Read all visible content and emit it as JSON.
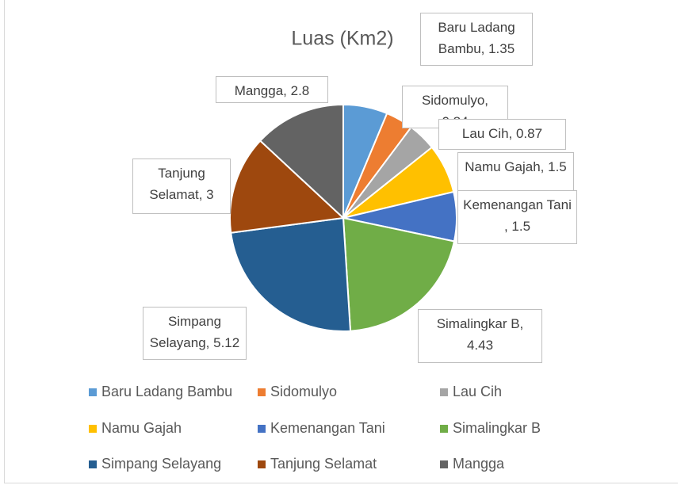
{
  "chart_data": {
    "type": "pie",
    "title": "Luas (Km2)",
    "categories": [
      "Baru Ladang Bambu",
      "Sidomulyo",
      "Lau Cih",
      "Namu Gajah",
      "Kemenangan Tani",
      "Simalingkar B",
      "Simpang Selayang",
      "Tanjung Selamat",
      "Mangga"
    ],
    "values": [
      1.35,
      0.84,
      0.87,
      1.5,
      1.5,
      4.43,
      5.12,
      3,
      2.8
    ],
    "value_labels": [
      "Baru Ladang Bambu, 1.35",
      "Sidomulyo, 0.84",
      "Lau Cih, 0.87",
      "Namu Gajah, 1.5",
      "Kemenangan Tani , 1.5",
      "Simalingkar B, 4.43",
      "Simpang Selayang, 5.12",
      "Tanjung Selamat, 3",
      "Mangga, 2.8"
    ],
    "colors": [
      "#5b9bd5",
      "#ed7d31",
      "#a5a5a5",
      "#ffc000",
      "#4472c4",
      "#70ad47",
      "#255e91",
      "#9e480e",
      "#636363"
    ],
    "legend": "bottom"
  }
}
